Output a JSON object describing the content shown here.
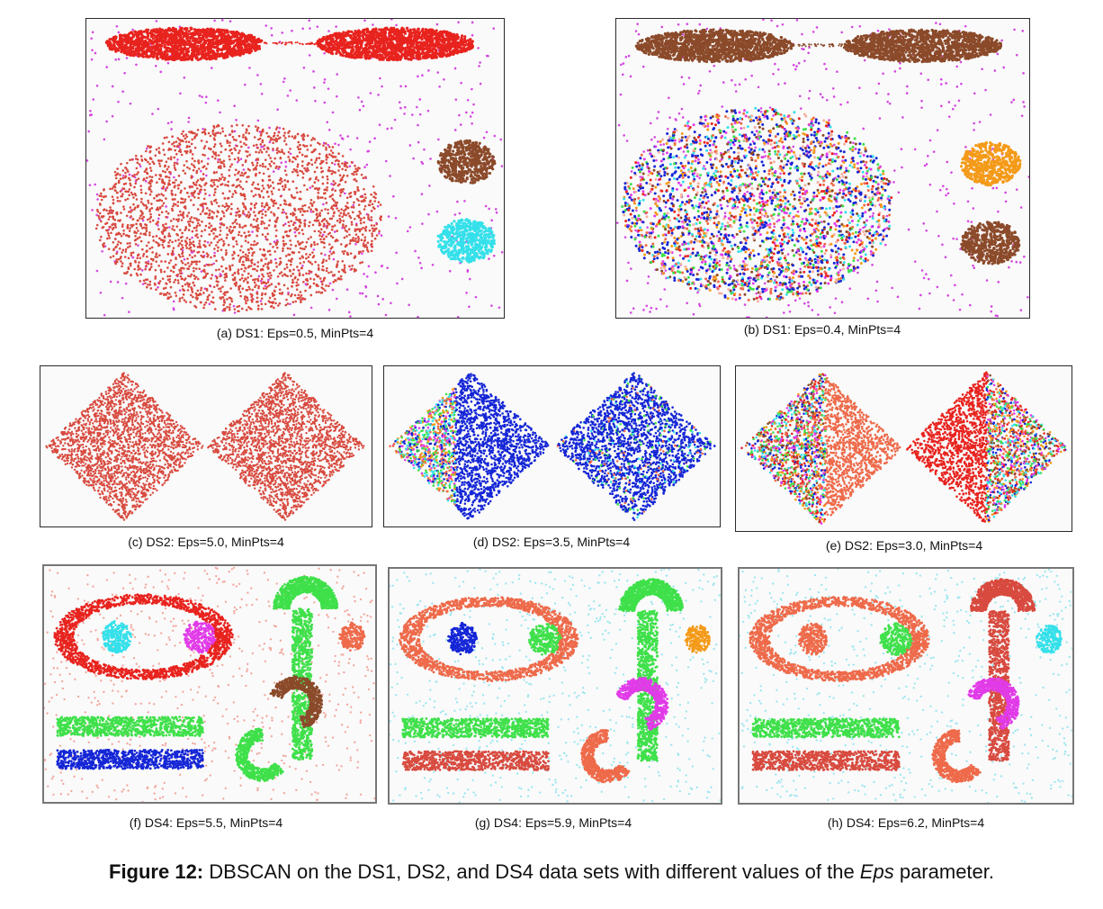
{
  "captions": {
    "a": "(a) DS1: Eps=0.5, MinPts=4",
    "b": "(b) DS1: Eps=0.4, MinPts=4",
    "c": "(c) DS2: Eps=5.0, MinPts=4",
    "d": "(d) DS2: Eps=3.5, MinPts=4",
    "e": "(e) DS2: Eps=3.0, MinPts=4",
    "f": "(f) DS4: Eps=5.5, MinPts=4",
    "g": "(g) DS4: Eps=5.9, MinPts=4",
    "h": "(h) DS4: Eps=6.2, MinPts=4"
  },
  "figure_caption": {
    "label": "Figure 12:",
    "text_before": " DBSCAN on the DS1, DS2, and DS4 data sets with different values of the ",
    "param": "Eps",
    "text_after": " parameter."
  },
  "colors": {
    "red": "#e8231e",
    "light_red": "#d84a3f",
    "salmon": "#ee6a4a",
    "brown": "#8b4a2a",
    "magenta_noise": "#d447e0",
    "cyan": "#35e0ea",
    "light_cyan": "#9fe6ef",
    "orange": "#f49a18",
    "blue": "#1526d6",
    "green": "#3fe04a",
    "pink": "#e13be8"
  }
}
